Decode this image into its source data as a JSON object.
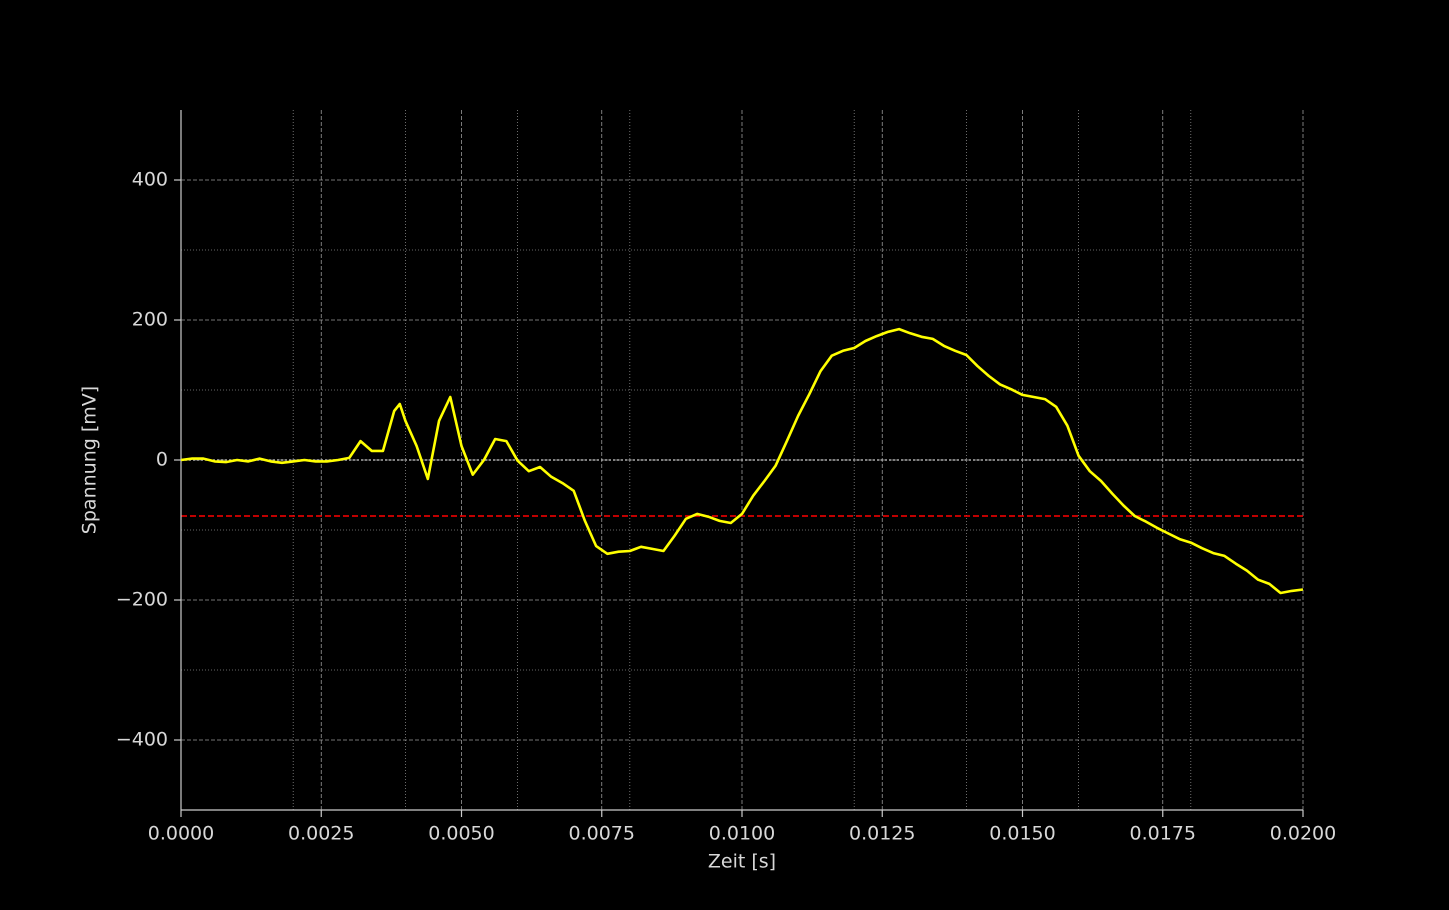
{
  "chart_data": {
    "type": "line",
    "x_label": "Zeit [s]",
    "y_label": "Spannung [mV]",
    "x": [
      0,
      0.0002,
      0.0004,
      0.0006,
      0.0008,
      0.001,
      0.0012,
      0.0014,
      0.0016,
      0.0018,
      0.002,
      0.0022,
      0.0024,
      0.0026,
      0.0028,
      0.003,
      0.0032,
      0.0034,
      0.0036,
      0.0038,
      0.0039,
      0.004,
      0.0042,
      0.0044,
      0.0046,
      0.0048,
      0.005,
      0.0052,
      0.0054,
      0.0056,
      0.0058,
      0.006,
      0.0062,
      0.0064,
      0.0066,
      0.0068,
      0.007,
      0.0072,
      0.0074,
      0.0076,
      0.0078,
      0.008,
      0.0082,
      0.0084,
      0.0086,
      0.0088,
      0.009,
      0.0092,
      0.0094,
      0.0096,
      0.0098,
      0.01,
      0.0102,
      0.0104,
      0.0106,
      0.0108,
      0.011,
      0.0112,
      0.0114,
      0.0116,
      0.0118,
      0.012,
      0.0122,
      0.0124,
      0.0126,
      0.0128,
      0.013,
      0.0132,
      0.0134,
      0.0136,
      0.0138,
      0.014,
      0.0142,
      0.0144,
      0.0146,
      0.0148,
      0.015,
      0.0152,
      0.0154,
      0.0156,
      0.0158,
      0.016,
      0.0162,
      0.0164,
      0.0166,
      0.0168,
      0.017,
      0.0172,
      0.0174,
      0.0176,
      0.0178,
      0.018,
      0.0182,
      0.0184,
      0.0186,
      0.0188,
      0.019,
      0.0192,
      0.0194,
      0.0196,
      0.0198,
      0.02
    ],
    "series": [
      {
        "color": "#ffff00",
        "values": [
          0,
          2,
          2,
          -2,
          -3,
          0,
          -2,
          2,
          -2,
          -4,
          -2,
          0,
          -2,
          -2,
          0,
          3,
          27,
          13,
          13,
          70,
          80,
          56,
          20,
          -27,
          56,
          90,
          20,
          -21,
          0,
          30,
          27,
          -1,
          -16,
          -10,
          -24,
          -33,
          -44,
          -87,
          -123,
          -134,
          -131,
          -130,
          -124,
          -127,
          -130,
          -108,
          -84,
          -77,
          -81,
          -87,
          -90,
          -77,
          -51,
          -30,
          -8,
          27,
          63,
          94,
          127,
          149,
          156,
          160,
          170,
          177,
          183,
          187,
          181,
          176,
          173,
          163,
          156,
          150,
          134,
          120,
          108,
          101,
          93,
          90,
          87,
          76,
          49,
          6,
          -16,
          -30,
          -48,
          -65,
          -80,
          -88,
          -97,
          -105,
          -113,
          -118,
          -126,
          -133,
          -137,
          -148,
          -158,
          -171,
          -177,
          -190,
          -187,
          -185
        ]
      }
    ],
    "reference_lines": [
      {
        "value": 0,
        "color": "#aaaaaa",
        "style": "dotted"
      },
      {
        "value": -80,
        "color": "#ff0000",
        "style": "dashed"
      }
    ],
    "xlim": [
      0,
      0.02
    ],
    "xticks": [
      {
        "value": 0,
        "label": "0.0000"
      },
      {
        "value": 0.0025,
        "label": "0.0025"
      },
      {
        "value": 0.005,
        "label": "0.0050"
      },
      {
        "value": 0.0075,
        "label": "0.0075"
      },
      {
        "value": 0.01,
        "label": "0.0100"
      },
      {
        "value": 0.0125,
        "label": "0.0125"
      },
      {
        "value": 0.015,
        "label": "0.0150"
      },
      {
        "value": 0.0175,
        "label": "0.0175"
      },
      {
        "value": 0.02,
        "label": "0.0200"
      }
    ],
    "x_minor_ticks": [
      0.002,
      0.004,
      0.006,
      0.008,
      0.012,
      0.014,
      0.016,
      0.018
    ],
    "ylim": [
      -500,
      500
    ],
    "yticks": [
      {
        "value": -400,
        "label": "−400"
      },
      {
        "value": -200,
        "label": "−200"
      },
      0,
      200,
      400
    ],
    "y_minor_ticks": [
      -300,
      -100,
      100,
      300
    ],
    "grid": true,
    "background": "#000000"
  }
}
